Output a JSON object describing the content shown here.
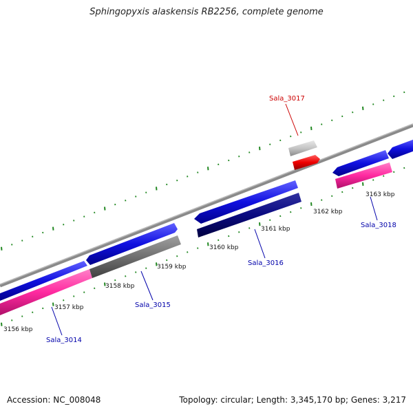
{
  "title": "Sphingopyxis alaskensis RB2256, complete genome",
  "footer": {
    "accession": "Accession: NC_008048",
    "summary": "Topology: circular; Length: 3,345,170 bp; Genes: 3,217"
  },
  "ticks": [
    "3156 kbp",
    "3157 kbp",
    "3158 kbp",
    "3159 kbp",
    "3160 kbp",
    "3161 kbp",
    "3162 kbp",
    "3163 kbp"
  ],
  "genes": [
    {
      "id": "Sala_3014",
      "highlighted": false
    },
    {
      "id": "Sala_3015",
      "highlighted": false
    },
    {
      "id": "Sala_3016",
      "highlighted": false
    },
    {
      "id": "Sala_3017",
      "highlighted": true
    },
    {
      "id": "Sala_3018",
      "highlighted": false
    }
  ],
  "colors": {
    "backbone": "#8a8a8a",
    "forward_gene": "#1010e0",
    "reverse_gene": "#ff2aa0",
    "dark_gene": "#0a0a80",
    "gray_gene": "#707070",
    "highlight_gene": "#ee0000",
    "tick": "#228822",
    "label_blue": "#0000aa",
    "label_red": "#cc0000"
  }
}
